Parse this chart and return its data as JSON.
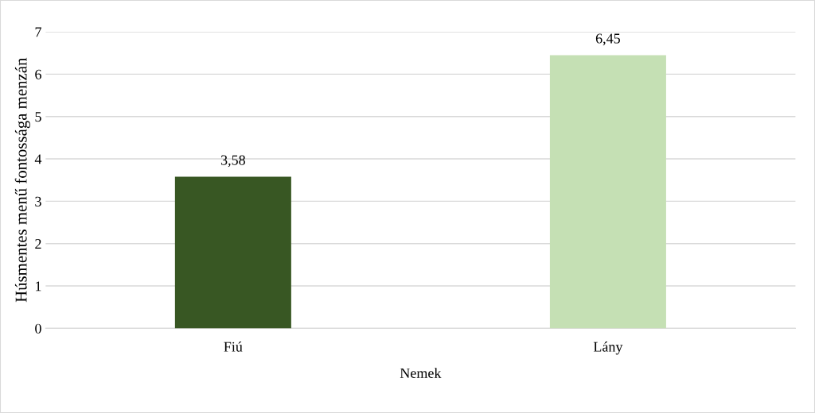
{
  "chart_data": {
    "type": "bar",
    "xlabel": "Nemek",
    "ylabel": "Húsmentes menű fontossága menzán",
    "categories": [
      "Fiú",
      "Lány"
    ],
    "values": [
      3.58,
      6.45
    ],
    "colors": [
      "#385723",
      "#c5e0b4"
    ],
    "value_labels": [
      "3,58",
      "6,45"
    ],
    "ylim": [
      0,
      7
    ],
    "yticks": [
      0,
      1,
      2,
      3,
      4,
      5,
      6,
      7
    ],
    "grid": "y",
    "legend": false
  }
}
